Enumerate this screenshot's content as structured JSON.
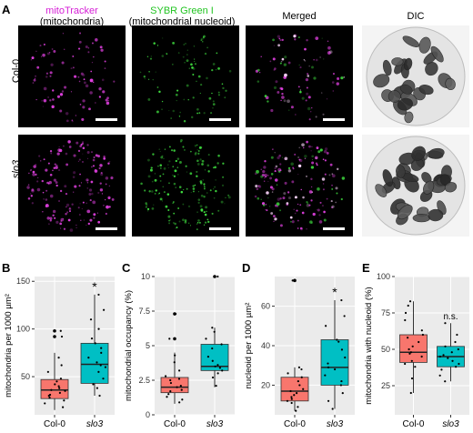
{
  "figure": {
    "panel_labels": {
      "a": "A",
      "b": "B",
      "c": "C",
      "d": "D",
      "e": "E"
    },
    "columns": [
      {
        "line1": "mitoTracker",
        "line2": "(mitochondria)",
        "color": "#d61fd6"
      },
      {
        "line1": "SYBR Green I",
        "line2": "(mitochondrial nucleoid)",
        "color": "#22c422"
      },
      {
        "line1": "Merged",
        "line2": "",
        "color": "#000000"
      },
      {
        "line1": "DIC",
        "line2": "",
        "color": "#000000"
      }
    ],
    "rows": [
      {
        "label": "Col-0",
        "italic": false
      },
      {
        "label": "slo3",
        "italic": true
      }
    ],
    "colors": {
      "col0": "#f8766d",
      "slo3": "#00bfc4",
      "magenta": "#e040e0",
      "green": "#40e040",
      "panel_bg": "#ebebeb"
    }
  },
  "chart_data": [
    {
      "type": "box",
      "panel": "B",
      "ylabel": "mitochondria per 1000 µm²",
      "yticks": [
        50,
        100,
        150
      ],
      "ylim": [
        10,
        155
      ],
      "categories": [
        "Col-0",
        "slo3"
      ],
      "boxes": [
        {
          "name": "Col-0",
          "min": 15,
          "q1": 27,
          "median": 36,
          "q3": 47,
          "max": 75,
          "outliers": [
            92,
            98
          ],
          "points": [
            18,
            22,
            25,
            28,
            30,
            31,
            33,
            35,
            36,
            38,
            40,
            42,
            45,
            48,
            55,
            62,
            70,
            92,
            98
          ]
        },
        {
          "name": "slo3",
          "min": 30,
          "q1": 43,
          "median": 63,
          "q3": 85,
          "max": 136,
          "outliers": [],
          "points": [
            30,
            38,
            42,
            48,
            55,
            60,
            62,
            65,
            70,
            75,
            80,
            85,
            90,
            100,
            110,
            120,
            136
          ]
        }
      ],
      "annotation": {
        "text": "*",
        "target": "slo3"
      }
    },
    {
      "type": "box",
      "panel": "C",
      "ylabel": "mitochondrial occupancy (%)",
      "yticks": [
        0,
        2.5,
        5,
        7.5,
        10
      ],
      "ylim": [
        0,
        10
      ],
      "categories": [
        "Col-0",
        "slo3"
      ],
      "boxes": [
        {
          "name": "Col-0",
          "min": 0.8,
          "q1": 1.6,
          "median": 2.0,
          "q3": 2.7,
          "max": 4.5,
          "outliers": [
            5.5,
            7.3
          ],
          "points": [
            0.9,
            1.1,
            1.3,
            1.5,
            1.7,
            1.8,
            2.0,
            2.1,
            2.3,
            2.5,
            2.6,
            2.8,
            3.2,
            3.8,
            4.3,
            5.5,
            7.3
          ]
        },
        {
          "name": "slo3",
          "min": 2.0,
          "q1": 3.2,
          "median": 3.5,
          "q3": 5.1,
          "max": 6.3,
          "outliers": [
            10.0
          ],
          "points": [
            2.1,
            2.7,
            3.0,
            3.2,
            3.4,
            3.5,
            3.6,
            3.9,
            4.2,
            4.8,
            5.1,
            5.5,
            6.0,
            6.3,
            10.0
          ]
        }
      ],
      "annotation": {
        "text": "*",
        "target": "slo3"
      }
    },
    {
      "type": "box",
      "panel": "D",
      "ylabel": "nucleoid per 1000 µm²",
      "yticks": [
        20,
        40,
        60
      ],
      "ylim": [
        5,
        75
      ],
      "categories": [
        "Col-0",
        "slo3"
      ],
      "boxes": [
        {
          "name": "Col-0",
          "min": 7,
          "q1": 12,
          "median": 17,
          "q3": 24,
          "max": 29,
          "outliers": [
            73
          ],
          "points": [
            7,
            9,
            11,
            12,
            13,
            14,
            15,
            16,
            17,
            18,
            20,
            22,
            24,
            26,
            28,
            29,
            73
          ]
        },
        {
          "name": "slo3",
          "min": 8,
          "q1": 20,
          "median": 29,
          "q3": 43,
          "max": 63,
          "outliers": [],
          "points": [
            8,
            12,
            16,
            20,
            22,
            25,
            28,
            29,
            31,
            34,
            38,
            42,
            43,
            50,
            55,
            63
          ]
        }
      ],
      "annotation": {
        "text": "*",
        "target": "slo3"
      }
    },
    {
      "type": "box",
      "panel": "E",
      "ylabel": "mitochondria with nucleoid (%)",
      "yticks": [
        25,
        50,
        75,
        100
      ],
      "ylim": [
        5,
        100
      ],
      "categories": [
        "Col-0",
        "slo3"
      ],
      "boxes": [
        {
          "name": "Col-0",
          "min": 20,
          "q1": 41,
          "median": 48,
          "q3": 60,
          "max": 83,
          "outliers": [],
          "points": [
            20,
            30,
            38,
            40,
            42,
            45,
            47,
            48,
            50,
            52,
            55,
            58,
            60,
            63,
            70,
            75,
            80,
            83
          ]
        },
        {
          "name": "slo3",
          "min": 28,
          "q1": 38,
          "median": 45,
          "q3": 52,
          "max": 68,
          "outliers": [],
          "points": [
            28,
            32,
            36,
            38,
            40,
            42,
            44,
            45,
            46,
            48,
            50,
            52,
            55,
            60,
            68
          ]
        }
      ],
      "annotation": {
        "text": "n.s.",
        "target": "slo3"
      }
    }
  ]
}
